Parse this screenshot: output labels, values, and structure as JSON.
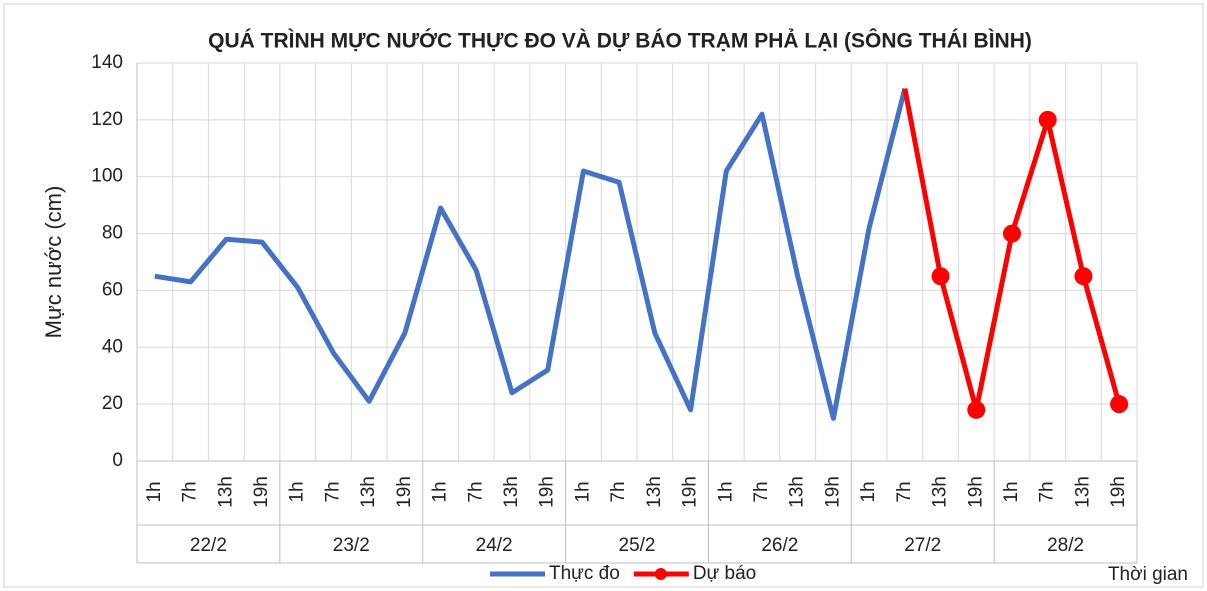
{
  "chart_data": {
    "type": "line",
    "title": "QUÁ TRÌNH MỰC NƯỚC THỰC ĐO VÀ DỰ BÁO TRẠM PHẢ LẠI (SÔNG THÁI BÌNH)",
    "y_label": "Mực nước (cm)",
    "x_label": "Thời gian",
    "categories": [
      "1h",
      "7h",
      "13h",
      "19h",
      "1h",
      "7h",
      "13h",
      "19h",
      "1h",
      "7h",
      "13h",
      "19h",
      "1h",
      "7h",
      "13h",
      "19h",
      "1h",
      "7h",
      "13h",
      "19h",
      "1h",
      "7h",
      "13h",
      "19h",
      "1h",
      "7h",
      "13h",
      "19h"
    ],
    "groups": [
      "22/2",
      "23/2",
      "24/2",
      "25/2",
      "26/2",
      "27/2",
      "28/2"
    ],
    "series": [
      {
        "name": "Thực đo",
        "color": "#4472c4",
        "marker": false,
        "values": [
          65,
          63,
          78,
          77,
          61,
          38,
          21,
          45,
          89,
          67,
          24,
          32,
          102,
          98,
          45,
          18,
          102,
          122,
          65,
          15,
          82,
          131,
          null,
          null,
          null,
          null,
          null,
          null
        ]
      },
      {
        "name": "Dự báo",
        "color": "#ff0000",
        "marker": true,
        "values": [
          null,
          null,
          null,
          null,
          null,
          null,
          null,
          null,
          null,
          null,
          null,
          null,
          null,
          null,
          null,
          null,
          null,
          null,
          null,
          null,
          null,
          131,
          65,
          18,
          80,
          120,
          65,
          20
        ]
      }
    ],
    "ylim": [
      0,
      140
    ],
    "yticks": [
      0,
      20,
      40,
      60,
      80,
      100,
      120,
      140
    ],
    "grid": true
  }
}
